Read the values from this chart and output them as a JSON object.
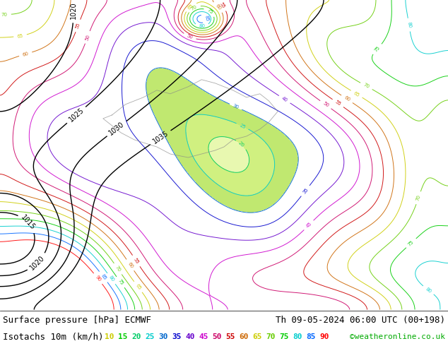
{
  "fig_width": 6.34,
  "fig_height": 4.9,
  "dpi": 100,
  "bg_color": "#ffffff",
  "bottom_bar_color": "#ffffff",
  "line1_left": "Surface pressure [hPa] ECMWF",
  "line1_right": "Th 09-05-2024 06:00 UTC (00+198)",
  "line2_left": "Isotachs 10m (km/h)",
  "line2_right": "©weatheronline.co.uk",
  "isotach_values": [
    10,
    15,
    20,
    25,
    30,
    35,
    40,
    45,
    50,
    55,
    60,
    65,
    70,
    75,
    80,
    85,
    90
  ],
  "isotach_colors": [
    "#c8c800",
    "#00c800",
    "#00c864",
    "#00c8c8",
    "#0064c8",
    "#0000c8",
    "#6400c8",
    "#c800c8",
    "#c80064",
    "#c80000",
    "#c86400",
    "#c8c800",
    "#64c800",
    "#00c800",
    "#00c8c8",
    "#0064ff",
    "#ff0000"
  ],
  "fill_colors": [
    "#ffffff",
    "#f5f5dc",
    "#d4edaa",
    "#b8e068",
    "#a0d040",
    "#ffffff",
    "#ffffff",
    "#ffffff",
    "#ffffff",
    "#ffffff",
    "#ffffff",
    "#ffffff",
    "#ffffff",
    "#ffffff",
    "#ffffff",
    "#ffffff",
    "#ffffff",
    "#ffffff"
  ],
  "font_size_line1": 9,
  "font_size_line2": 9,
  "font_size_isotach": 8
}
